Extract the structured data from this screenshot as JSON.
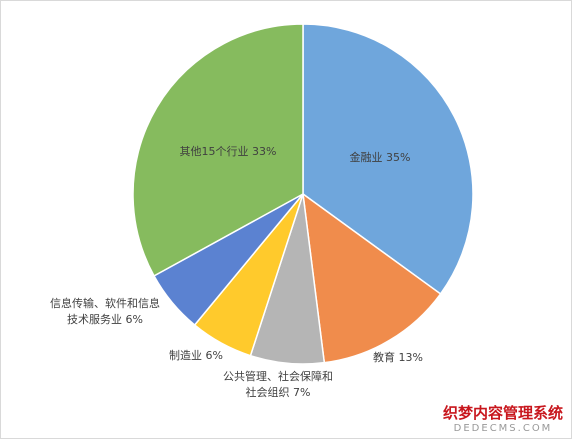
{
  "chart_data": {
    "type": "pie",
    "categories": [
      "金融业",
      "教育",
      "公共管理、社会保障和社会组织",
      "制造业",
      "信息传输、软件和信息技术服务业",
      "其他15个行业"
    ],
    "values": [
      35,
      13,
      7,
      6,
      6,
      33
    ],
    "value_labels": [
      "金融业 35%",
      "教育 13%",
      "公共管理、社会保障和\n社会组织 7%",
      "制造业 6%",
      "信息传输、软件和信息\n技术服务业 6%",
      "其他15个行业 33%"
    ],
    "colors": [
      "#6fa6dc",
      "#f08c4c",
      "#b5b5b5",
      "#ffca2c",
      "#5b82d1",
      "#86bb5e"
    ]
  },
  "watermark": {
    "title": "织梦内容管理系统",
    "subtitle": "DEDECMS.COM"
  }
}
